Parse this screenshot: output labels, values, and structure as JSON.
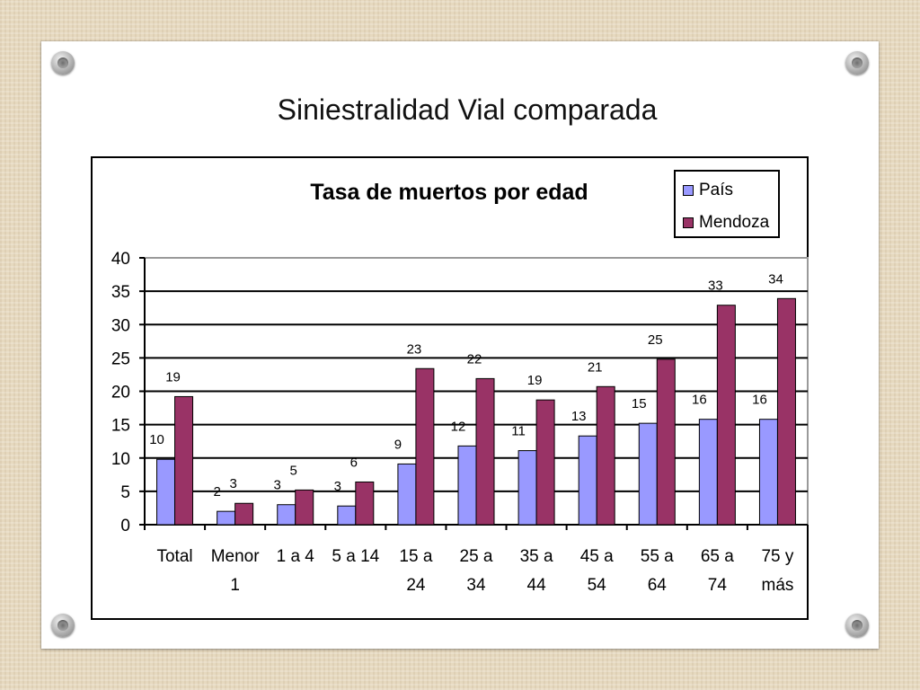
{
  "slide": {
    "title": "Siniestralidad Vial comparada"
  },
  "colors": {
    "pais": "#9999ff",
    "mendoza": "#993366",
    "background": "#e6d9bf"
  },
  "chart_data": {
    "type": "bar",
    "title": "Tasa de muertos por edad",
    "categories": [
      [
        "Total"
      ],
      [
        "Menor",
        "1"
      ],
      [
        "1 a 4"
      ],
      [
        "5 a 14"
      ],
      [
        "15 a",
        "24"
      ],
      [
        "25 a",
        "34"
      ],
      [
        "35 a",
        "44"
      ],
      [
        "45 a",
        "54"
      ],
      [
        "55 a",
        "64"
      ],
      [
        "65 a",
        "74"
      ],
      [
        "75 y",
        "más"
      ]
    ],
    "series": [
      {
        "name": "País",
        "values": [
          10,
          2,
          3,
          3,
          9,
          12,
          11,
          13,
          15,
          16,
          16
        ],
        "plotted": [
          9.8,
          2,
          3,
          2.8,
          9.1,
          11.8,
          11.1,
          13.3,
          15.2,
          15.8,
          15.8
        ]
      },
      {
        "name": "Mendoza",
        "values": [
          19,
          3,
          5,
          6,
          23,
          22,
          19,
          21,
          25,
          33,
          34
        ],
        "plotted": [
          19.2,
          3.2,
          5.2,
          6.4,
          23.4,
          21.9,
          18.7,
          20.7,
          24.8,
          32.9,
          33.9
        ]
      }
    ],
    "ylim": [
      0,
      40
    ],
    "yticks": [
      0,
      5,
      10,
      15,
      20,
      25,
      30,
      35,
      40
    ],
    "grid": true,
    "legend_position": "top-right"
  }
}
